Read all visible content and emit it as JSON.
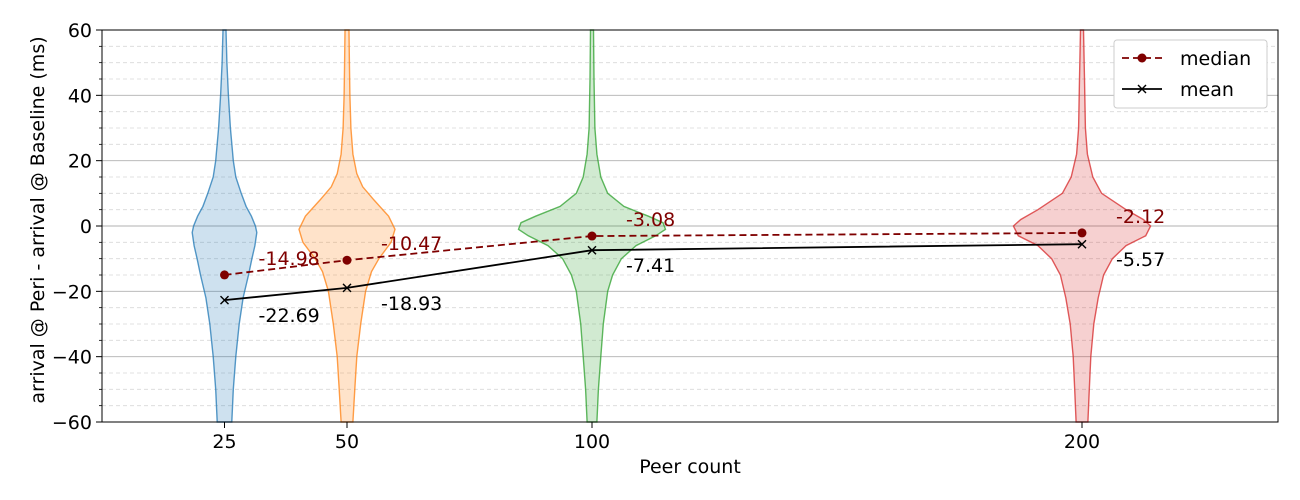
{
  "chart_data": {
    "type": "violin",
    "xlabel": "Peer count",
    "ylabel": "arrival @ Peri - arrival @ Baseline (ms)",
    "ylim": [
      -60,
      60
    ],
    "xlim": [
      0,
      240
    ],
    "yticks": [
      -60,
      -40,
      -20,
      0,
      20,
      40,
      60
    ],
    "yminor_step": 5,
    "categories": [
      "25",
      "50",
      "100",
      "200"
    ],
    "x": [
      25,
      50,
      100,
      200
    ],
    "grid": {
      "major_y": true,
      "minor_y": true,
      "major_x": false
    },
    "legend": {
      "position": "top-right",
      "entries": [
        "median",
        "mean"
      ]
    },
    "series": [
      {
        "name": "median",
        "style": "dashed",
        "marker": "circle",
        "color": "#7f0000",
        "values": [
          -14.98,
          -10.47,
          -3.08,
          -2.12
        ],
        "labels": [
          "-14.98",
          "-10.47",
          "-3.08",
          "-2.12"
        ]
      },
      {
        "name": "mean",
        "style": "solid",
        "marker": "x",
        "color": "#000000",
        "values": [
          -22.69,
          -18.93,
          -7.41,
          -5.57
        ],
        "labels": [
          "-22.69",
          "-18.93",
          "-7.41",
          "-5.57"
        ]
      }
    ],
    "violins": [
      {
        "category": "25",
        "color": "#1f77b4",
        "profile": [
          [
            -60,
            1.5
          ],
          [
            -50,
            1.8
          ],
          [
            -40,
            2.3
          ],
          [
            -30,
            3.0
          ],
          [
            -22,
            3.8
          ],
          [
            -15,
            4.9
          ],
          [
            -10,
            5.6
          ],
          [
            -6,
            6.2
          ],
          [
            -2,
            6.6
          ],
          [
            0,
            6.3
          ],
          [
            3,
            5.5
          ],
          [
            6,
            4.4
          ],
          [
            10,
            3.4
          ],
          [
            15,
            2.3
          ],
          [
            20,
            1.8
          ],
          [
            30,
            1.2
          ],
          [
            40,
            0.8
          ],
          [
            50,
            0.5
          ],
          [
            60,
            0.3
          ]
        ]
      },
      {
        "category": "50",
        "color": "#ff7f0e",
        "profile": [
          [
            -60,
            1.2
          ],
          [
            -50,
            1.6
          ],
          [
            -40,
            2.0
          ],
          [
            -30,
            2.8
          ],
          [
            -20,
            3.8
          ],
          [
            -14,
            5.0
          ],
          [
            -10,
            6.5
          ],
          [
            -5,
            9.0
          ],
          [
            -1,
            9.8
          ],
          [
            3,
            8.5
          ],
          [
            8,
            5.5
          ],
          [
            12,
            3.2
          ],
          [
            16,
            2.0
          ],
          [
            22,
            1.2
          ],
          [
            30,
            0.8
          ],
          [
            40,
            0.6
          ],
          [
            50,
            0.5
          ],
          [
            60,
            0.4
          ]
        ]
      },
      {
        "category": "100",
        "color": "#2ca02c",
        "profile": [
          [
            -60,
            1.0
          ],
          [
            -50,
            1.3
          ],
          [
            -40,
            1.8
          ],
          [
            -30,
            2.3
          ],
          [
            -20,
            3.2
          ],
          [
            -15,
            4.2
          ],
          [
            -10,
            6.0
          ],
          [
            -6,
            9.0
          ],
          [
            -3,
            13.0
          ],
          [
            -1,
            15.0
          ],
          [
            1,
            14.5
          ],
          [
            3,
            11.5
          ],
          [
            6,
            6.5
          ],
          [
            10,
            3.2
          ],
          [
            15,
            1.8
          ],
          [
            22,
            1.0
          ],
          [
            30,
            0.6
          ],
          [
            45,
            0.4
          ],
          [
            60,
            0.3
          ]
        ]
      },
      {
        "category": "200",
        "color": "#d62728",
        "profile": [
          [
            -60,
            1.2
          ],
          [
            -50,
            1.5
          ],
          [
            -40,
            1.8
          ],
          [
            -30,
            2.4
          ],
          [
            -22,
            3.3
          ],
          [
            -15,
            4.4
          ],
          [
            -10,
            6.2
          ],
          [
            -6,
            9.0
          ],
          [
            -3,
            13.0
          ],
          [
            0,
            14.0
          ],
          [
            2,
            12.5
          ],
          [
            5,
            9.0
          ],
          [
            10,
            4.0
          ],
          [
            15,
            2.2
          ],
          [
            22,
            1.1
          ],
          [
            30,
            0.7
          ],
          [
            45,
            0.5
          ],
          [
            60,
            0.3
          ]
        ]
      }
    ]
  }
}
